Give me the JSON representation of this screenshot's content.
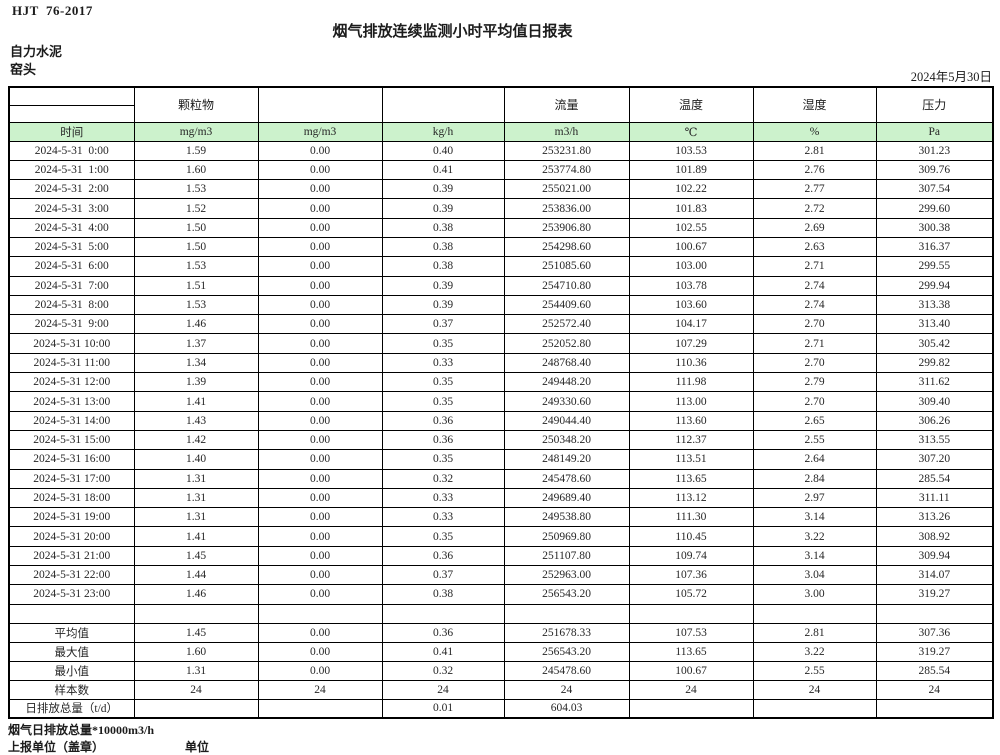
{
  "header": {
    "standard": "HJT  76-2017",
    "title": "烟气排放连续监测小时平均值日报表",
    "company": "自力水泥",
    "station": "窑头",
    "date": "2024年5月30日"
  },
  "table": {
    "time_header": "时间",
    "group_headers": [
      "颗粒物",
      "",
      "",
      "流量",
      "温度",
      "湿度",
      "压力"
    ],
    "units": [
      "mg/m3",
      "mg/m3",
      "kg/h",
      "m3/h",
      "℃",
      "%",
      "Pa"
    ],
    "rows": [
      {
        "time": "2024-5-31  0:00",
        "values": [
          "1.59",
          "0.00",
          "0.40",
          "253231.80",
          "103.53",
          "2.81",
          "301.23"
        ]
      },
      {
        "time": "2024-5-31  1:00",
        "values": [
          "1.60",
          "0.00",
          "0.41",
          "253774.80",
          "101.89",
          "2.76",
          "309.76"
        ]
      },
      {
        "time": "2024-5-31  2:00",
        "values": [
          "1.53",
          "0.00",
          "0.39",
          "255021.00",
          "102.22",
          "2.77",
          "307.54"
        ]
      },
      {
        "time": "2024-5-31  3:00",
        "values": [
          "1.52",
          "0.00",
          "0.39",
          "253836.00",
          "101.83",
          "2.72",
          "299.60"
        ]
      },
      {
        "time": "2024-5-31  4:00",
        "values": [
          "1.50",
          "0.00",
          "0.38",
          "253906.80",
          "102.55",
          "2.69",
          "300.38"
        ]
      },
      {
        "time": "2024-5-31  5:00",
        "values": [
          "1.50",
          "0.00",
          "0.38",
          "254298.60",
          "100.67",
          "2.63",
          "316.37"
        ]
      },
      {
        "time": "2024-5-31  6:00",
        "values": [
          "1.53",
          "0.00",
          "0.38",
          "251085.60",
          "103.00",
          "2.71",
          "299.55"
        ]
      },
      {
        "time": "2024-5-31  7:00",
        "values": [
          "1.51",
          "0.00",
          "0.39",
          "254710.80",
          "103.78",
          "2.74",
          "299.94"
        ]
      },
      {
        "time": "2024-5-31  8:00",
        "values": [
          "1.53",
          "0.00",
          "0.39",
          "254409.60",
          "103.60",
          "2.74",
          "313.38"
        ]
      },
      {
        "time": "2024-5-31  9:00",
        "values": [
          "1.46",
          "0.00",
          "0.37",
          "252572.40",
          "104.17",
          "2.70",
          "313.40"
        ]
      },
      {
        "time": "2024-5-31 10:00",
        "values": [
          "1.37",
          "0.00",
          "0.35",
          "252052.80",
          "107.29",
          "2.71",
          "305.42"
        ]
      },
      {
        "time": "2024-5-31 11:00",
        "values": [
          "1.34",
          "0.00",
          "0.33",
          "248768.40",
          "110.36",
          "2.70",
          "299.82"
        ]
      },
      {
        "time": "2024-5-31 12:00",
        "values": [
          "1.39",
          "0.00",
          "0.35",
          "249448.20",
          "111.98",
          "2.79",
          "311.62"
        ]
      },
      {
        "time": "2024-5-31 13:00",
        "values": [
          "1.41",
          "0.00",
          "0.35",
          "249330.60",
          "113.00",
          "2.70",
          "309.40"
        ]
      },
      {
        "time": "2024-5-31 14:00",
        "values": [
          "1.43",
          "0.00",
          "0.36",
          "249044.40",
          "113.60",
          "2.65",
          "306.26"
        ]
      },
      {
        "time": "2024-5-31 15:00",
        "values": [
          "1.42",
          "0.00",
          "0.36",
          "250348.20",
          "112.37",
          "2.55",
          "313.55"
        ]
      },
      {
        "time": "2024-5-31 16:00",
        "values": [
          "1.40",
          "0.00",
          "0.35",
          "248149.20",
          "113.51",
          "2.64",
          "307.20"
        ]
      },
      {
        "time": "2024-5-31 17:00",
        "values": [
          "1.31",
          "0.00",
          "0.32",
          "245478.60",
          "113.65",
          "2.84",
          "285.54"
        ]
      },
      {
        "time": "2024-5-31 18:00",
        "values": [
          "1.31",
          "0.00",
          "0.33",
          "249689.40",
          "113.12",
          "2.97",
          "311.11"
        ]
      },
      {
        "time": "2024-5-31 19:00",
        "values": [
          "1.31",
          "0.00",
          "0.33",
          "249538.80",
          "111.30",
          "3.14",
          "313.26"
        ]
      },
      {
        "time": "2024-5-31 20:00",
        "values": [
          "1.41",
          "0.00",
          "0.35",
          "250969.80",
          "110.45",
          "3.22",
          "308.92"
        ]
      },
      {
        "time": "2024-5-31 21:00",
        "values": [
          "1.45",
          "0.00",
          "0.36",
          "251107.80",
          "109.74",
          "3.14",
          "309.94"
        ]
      },
      {
        "time": "2024-5-31 22:00",
        "values": [
          "1.44",
          "0.00",
          "0.37",
          "252963.00",
          "107.36",
          "3.04",
          "314.07"
        ]
      },
      {
        "time": "2024-5-31 23:00",
        "values": [
          "1.46",
          "0.00",
          "0.38",
          "256543.20",
          "105.72",
          "3.00",
          "319.27"
        ]
      }
    ],
    "summary_rows": [
      {
        "label": "平均值",
        "values": [
          "1.45",
          "0.00",
          "0.36",
          "251678.33",
          "107.53",
          "2.81",
          "307.36"
        ]
      },
      {
        "label": "最大值",
        "values": [
          "1.60",
          "0.00",
          "0.41",
          "256543.20",
          "113.65",
          "3.22",
          "319.27"
        ]
      },
      {
        "label": "最小值",
        "values": [
          "1.31",
          "0.00",
          "0.32",
          "245478.60",
          "100.67",
          "2.55",
          "285.54"
        ]
      },
      {
        "label": "样本数",
        "values": [
          "24",
          "24",
          "24",
          "24",
          "24",
          "24",
          "24"
        ]
      },
      {
        "label": "日排放总量（t/d）",
        "values": [
          "",
          "",
          "0.01",
          "604.03",
          "",
          "",
          ""
        ]
      }
    ]
  },
  "footer": {
    "note": "烟气日排放总量*10000m3/h",
    "report_unit_label": "上报单位（盖章）",
    "unit_label": "单位"
  },
  "colors": {
    "unit_row_background": "#ccf2cc",
    "border": "#000000",
    "text": "#262626"
  }
}
